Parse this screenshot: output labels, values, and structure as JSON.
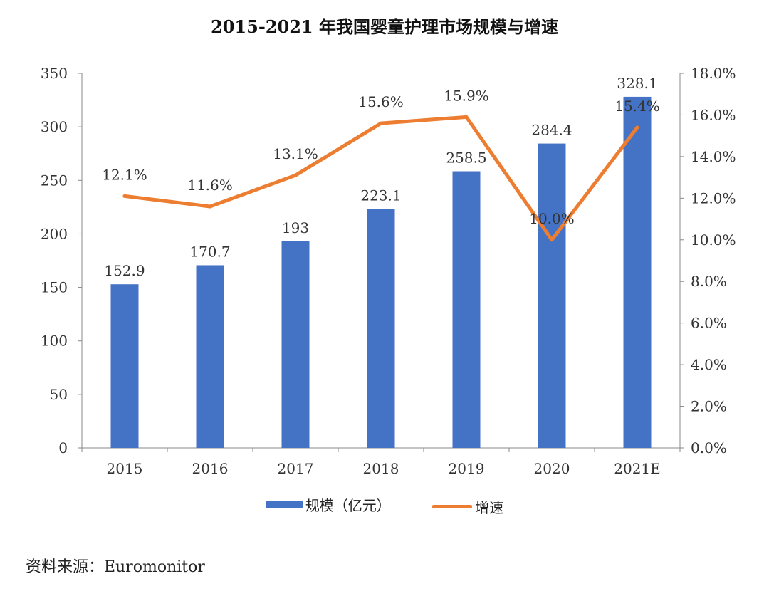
{
  "title": "2015-2021 年我国婴童护理市场规模与增速",
  "source": "资料来源：Euromonitor",
  "colors": {
    "bar": "#4472C4",
    "line": "#ED7D31",
    "axis": "#888888"
  },
  "chart_data": {
    "type": "bar+line",
    "title": "2015-2021 年我国婴童护理市场规模与增速",
    "categories": [
      "2015",
      "2016",
      "2017",
      "2018",
      "2019",
      "2020",
      "2021E"
    ],
    "series": [
      {
        "name": "规模（亿元）",
        "type": "bar",
        "axis": "left",
        "values": [
          152.9,
          170.7,
          193,
          223.1,
          258.5,
          284.4,
          328.1
        ],
        "labels": [
          "152.9",
          "170.7",
          "193",
          "223.1",
          "258.5",
          "284.4",
          "328.1"
        ]
      },
      {
        "name": "增速",
        "type": "line",
        "axis": "right",
        "values": [
          12.1,
          11.6,
          13.1,
          15.6,
          15.9,
          10.0,
          15.4
        ],
        "labels": [
          "12.1%",
          "11.6%",
          "13.1%",
          "15.6%",
          "15.9%",
          "10.0%",
          "15.4%"
        ]
      }
    ],
    "y_left": {
      "min": 0,
      "max": 350,
      "ticks": [
        "0",
        "50",
        "100",
        "150",
        "200",
        "250",
        "300",
        "350"
      ]
    },
    "y_right": {
      "min": 0,
      "max": 18,
      "ticks": [
        "0.0%",
        "2.0%",
        "4.0%",
        "6.0%",
        "8.0%",
        "10.0%",
        "12.0%",
        "14.0%",
        "16.0%",
        "18.0%"
      ]
    },
    "grid": false,
    "legend_position": "bottom"
  }
}
